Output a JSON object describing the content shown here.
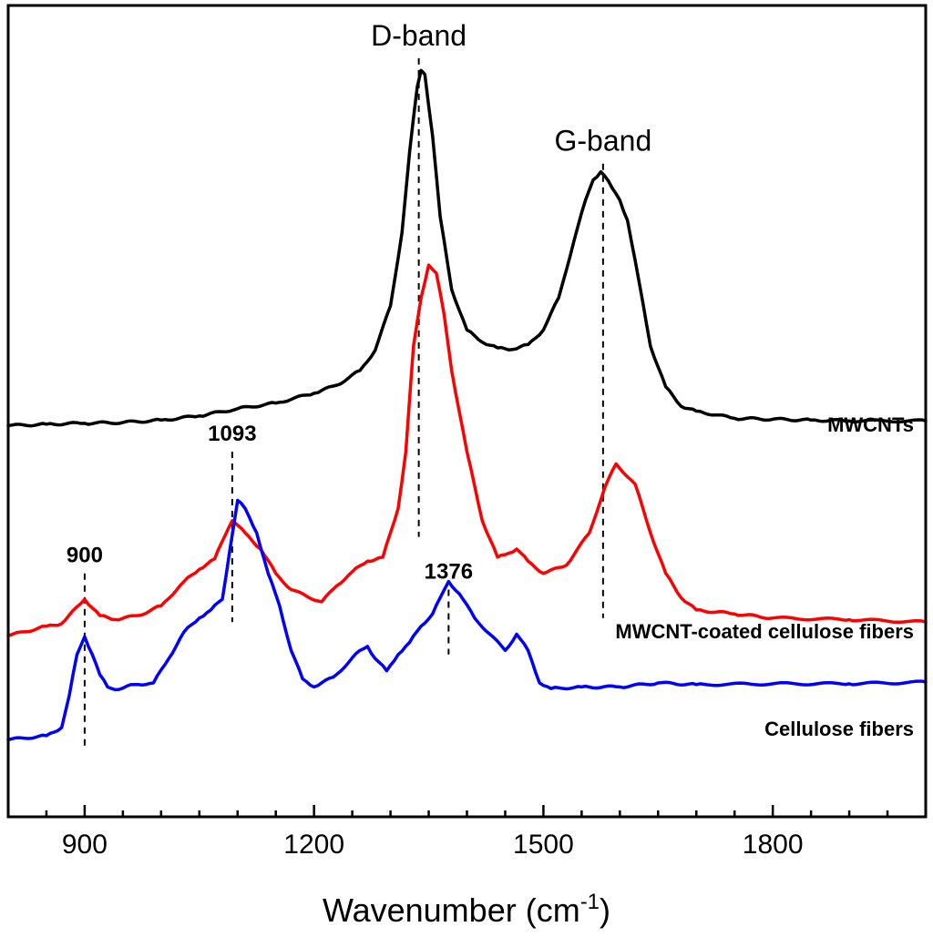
{
  "chart_data": {
    "type": "line",
    "title": "",
    "xlabel": "Wavenumber (cm",
    "xlabel_sup": "-1",
    "xlabel_close": ")",
    "ylabel": "",
    "xlim": [
      800,
      2000
    ],
    "xticks": [
      900,
      1200,
      1500,
      1800
    ],
    "xtick_labels": [
      "900",
      "1200",
      "1500",
      "1800"
    ],
    "ylim": [
      0,
      1
    ],
    "grid": false,
    "series": [
      {
        "name": "MWCNTs",
        "color": "#000000",
        "label_y": 0.475,
        "x": [
          800,
          850,
          900,
          950,
          1000,
          1050,
          1100,
          1150,
          1200,
          1230,
          1260,
          1280,
          1300,
          1315,
          1325,
          1335,
          1340,
          1345,
          1355,
          1365,
          1380,
          1400,
          1420,
          1440,
          1460,
          1480,
          1500,
          1520,
          1540,
          1555,
          1565,
          1575,
          1580,
          1590,
          1600,
          1610,
          1625,
          1640,
          1660,
          1680,
          1700,
          1750,
          1800,
          1850,
          1900,
          2000
        ],
        "y": [
          0.482,
          0.484,
          0.485,
          0.486,
          0.489,
          0.494,
          0.503,
          0.51,
          0.522,
          0.532,
          0.55,
          0.575,
          0.63,
          0.72,
          0.82,
          0.9,
          0.92,
          0.915,
          0.84,
          0.74,
          0.65,
          0.6,
          0.585,
          0.578,
          0.576,
          0.582,
          0.6,
          0.64,
          0.71,
          0.76,
          0.785,
          0.795,
          0.79,
          0.775,
          0.76,
          0.735,
          0.66,
          0.58,
          0.53,
          0.506,
          0.5,
          0.491,
          0.49,
          0.489,
          0.488,
          0.488
        ]
      },
      {
        "name": "MWCNT-coated cellulose fibers",
        "color": "#ff0000",
        "label_y": 0.22,
        "x": [
          800,
          850,
          870,
          900,
          920,
          940,
          970,
          1000,
          1030,
          1050,
          1070,
          1093,
          1110,
          1130,
          1150,
          1170,
          1190,
          1210,
          1230,
          1250,
          1270,
          1290,
          1310,
          1320,
          1330,
          1340,
          1350,
          1360,
          1370,
          1380,
          1400,
          1420,
          1440,
          1455,
          1465,
          1480,
          1500,
          1530,
          1560,
          1580,
          1595,
          1620,
          1640,
          1660,
          1680,
          1700,
          1750,
          1800,
          1900,
          2000
        ],
        "y": [
          0.223,
          0.235,
          0.238,
          0.268,
          0.248,
          0.243,
          0.248,
          0.26,
          0.29,
          0.305,
          0.318,
          0.365,
          0.35,
          0.33,
          0.3,
          0.28,
          0.272,
          0.265,
          0.285,
          0.302,
          0.315,
          0.32,
          0.38,
          0.45,
          0.58,
          0.64,
          0.68,
          0.67,
          0.62,
          0.55,
          0.45,
          0.365,
          0.32,
          0.325,
          0.33,
          0.315,
          0.3,
          0.31,
          0.35,
          0.405,
          0.435,
          0.41,
          0.35,
          0.3,
          0.27,
          0.255,
          0.25,
          0.245,
          0.243,
          0.24
        ]
      },
      {
        "name": "Cellulose fibers",
        "color": "#0000ff",
        "label_y": 0.1,
        "x": [
          800,
          850,
          870,
          880,
          890,
          900,
          910,
          920,
          930,
          945,
          965,
          990,
          1010,
          1030,
          1050,
          1065,
          1080,
          1090,
          1100,
          1110,
          1125,
          1140,
          1155,
          1170,
          1185,
          1200,
          1225,
          1245,
          1260,
          1270,
          1280,
          1295,
          1310,
          1325,
          1340,
          1355,
          1365,
          1376,
          1390,
          1410,
          1430,
          1450,
          1465,
          1480,
          1495,
          1510,
          1550,
          1600,
          1650,
          1700,
          1800,
          1900,
          2000
        ],
        "y": [
          0.095,
          0.1,
          0.11,
          0.15,
          0.2,
          0.222,
          0.2,
          0.175,
          0.16,
          0.157,
          0.163,
          0.165,
          0.195,
          0.228,
          0.245,
          0.255,
          0.268,
          0.33,
          0.39,
          0.38,
          0.35,
          0.3,
          0.26,
          0.205,
          0.17,
          0.16,
          0.172,
          0.19,
          0.205,
          0.21,
          0.195,
          0.18,
          0.2,
          0.215,
          0.235,
          0.25,
          0.27,
          0.29,
          0.275,
          0.245,
          0.225,
          0.205,
          0.225,
          0.205,
          0.165,
          0.158,
          0.16,
          0.16,
          0.165,
          0.163,
          0.164,
          0.164,
          0.166
        ]
      }
    ],
    "band_annotations": [
      {
        "text": "D-band",
        "x": 1337,
        "y_top": 0.935,
        "y_bottom": 0.345
      },
      {
        "text": "G-band",
        "x": 1578,
        "y_top": 0.805,
        "y_bottom": 0.245
      }
    ],
    "peak_annotations": [
      {
        "text": "900",
        "x": 900,
        "y_top": 0.3,
        "y_bottom": 0.085
      },
      {
        "text": "1093",
        "x": 1093,
        "y_top": 0.45,
        "y_bottom": 0.24
      },
      {
        "text": "1376",
        "x": 1376,
        "y_top": 0.28,
        "y_bottom": 0.2
      }
    ]
  }
}
